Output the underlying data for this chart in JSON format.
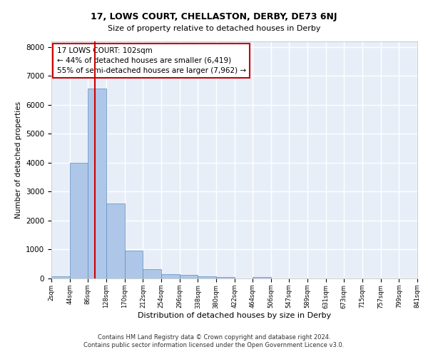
{
  "title_line1": "17, LOWS COURT, CHELLASTON, DERBY, DE73 6NJ",
  "title_line2": "Size of property relative to detached houses in Derby",
  "xlabel": "Distribution of detached houses by size in Derby",
  "ylabel": "Number of detached properties",
  "footer_line1": "Contains HM Land Registry data © Crown copyright and database right 2024.",
  "footer_line2": "Contains public sector information licensed under the Open Government Licence v3.0.",
  "annotation_title": "17 LOWS COURT: 102sqm",
  "annotation_line1": "← 44% of detached houses are smaller (6,419)",
  "annotation_line2": "55% of semi-detached houses are larger (7,962) →",
  "property_size": 102,
  "bin_edges": [
    2,
    44,
    86,
    128,
    170,
    212,
    254,
    296,
    338,
    380,
    422,
    464,
    506,
    547,
    589,
    631,
    673,
    715,
    757,
    799,
    841
  ],
  "bar_heights": [
    80,
    4000,
    6550,
    2600,
    950,
    320,
    140,
    130,
    80,
    60,
    0,
    60,
    0,
    0,
    0,
    0,
    0,
    0,
    0,
    0
  ],
  "bar_color": "#aec6e8",
  "bar_edge_color": "#5a8fc2",
  "red_line_color": "#cc0000",
  "background_color": "#e8eef8",
  "grid_color": "#ffffff",
  "annotation_box_color": "#cc0000",
  "ylim": [
    0,
    8200
  ],
  "yticks": [
    0,
    1000,
    2000,
    3000,
    4000,
    5000,
    6000,
    7000,
    8000
  ]
}
